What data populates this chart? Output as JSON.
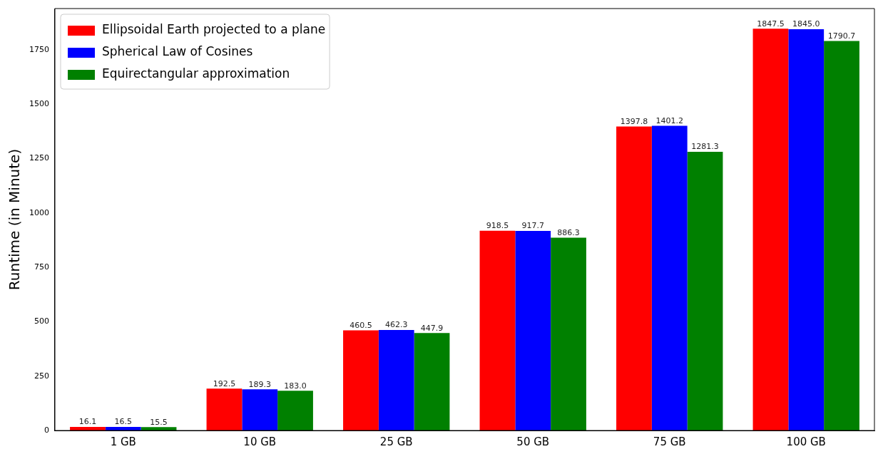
{
  "chart_data": {
    "type": "bar",
    "ylabel": "Runtime (in Minute)",
    "categories": [
      "1 GB",
      "10 GB",
      "25 GB",
      "50 GB",
      "75 GB",
      "100 GB"
    ],
    "series": [
      {
        "name": "Ellipsoidal Earth projected to a plane",
        "color": "#ff0000",
        "values": [
          16.1,
          192.5,
          460.5,
          918.5,
          1397.8,
          1847.5
        ],
        "value_labels": [
          "16.1",
          "192.5",
          "460.5",
          "918.5",
          "1397.8",
          "1847.5"
        ]
      },
      {
        "name": "Spherical Law of Cosines",
        "color": "#0000ff",
        "values": [
          16.5,
          189.3,
          462.3,
          917.7,
          1401.2,
          1845
        ],
        "value_labels": [
          "16.5",
          "189.3",
          "462.3",
          "917.7",
          "1401.2",
          "1845.0"
        ]
      },
      {
        "name": "Equirectangular approximation",
        "color": "#008000",
        "values": [
          15.5,
          183,
          447.9,
          886.3,
          1281.3,
          1790.7
        ],
        "value_labels": [
          "15.5",
          "183.0",
          "447.9",
          "886.3",
          "1281.3",
          "1790.7"
        ]
      }
    ],
    "ylim": [
      0,
      1940
    ],
    "yticks": [
      0,
      250,
      500,
      750,
      1000,
      1250,
      1500,
      1750
    ],
    "grid": false,
    "legend": "top left"
  }
}
